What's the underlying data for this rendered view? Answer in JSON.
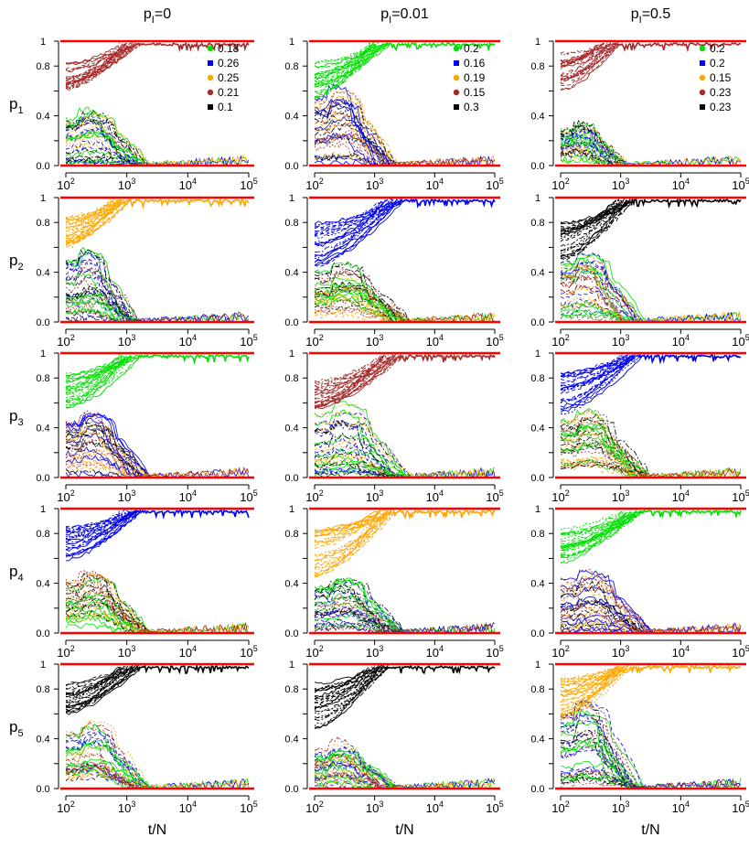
{
  "figure": {
    "column_titles": [
      {
        "base": "p",
        "sub": "I",
        "rest": "=0"
      },
      {
        "base": "p",
        "sub": "I",
        "rest": "=0.01"
      },
      {
        "base": "p",
        "sub": "I",
        "rest": "=0.5"
      }
    ],
    "row_labels": [
      {
        "base": "p",
        "sub": "1"
      },
      {
        "base": "p",
        "sub": "2"
      },
      {
        "base": "p",
        "sub": "3"
      },
      {
        "base": "p",
        "sub": "4"
      },
      {
        "base": "p",
        "sub": "5"
      }
    ],
    "xlabel": "t/N"
  },
  "chart_data": {
    "type": "line",
    "layout": "grid 5 rows x 3 columns",
    "x_scale": "log",
    "xlim": [
      100,
      100000
    ],
    "ylim": [
      0,
      1
    ],
    "x_ticks": [
      {
        "base": "10",
        "exp": "2"
      },
      {
        "base": "10",
        "exp": "3"
      },
      {
        "base": "10",
        "exp": "4"
      },
      {
        "base": "10",
        "exp": "5"
      }
    ],
    "y_ticks": [
      "0.0",
      "0.4",
      "0.8"
    ],
    "y_tick_values": [
      0.0,
      0.4,
      0.8
    ],
    "y_extra_ticks": [
      {
        "label": "1",
        "value": 1.0
      },
      {
        "label": "",
        "value": 0.2
      },
      {
        "label": "",
        "value": 0.6
      }
    ],
    "color_map": {
      "green": "#00e000",
      "blue": "#0000ee",
      "orange": "#ffa500",
      "brown": "#a52a2a",
      "black": "#000000",
      "red": "#ff0000"
    },
    "legend_markers": [
      "circle",
      "square",
      "circle",
      "circle",
      "square"
    ],
    "series_colors": [
      "green",
      "blue",
      "orange",
      "brown",
      "black"
    ],
    "reference_lines": {
      "color": "red",
      "y": [
        0,
        1
      ]
    },
    "legends": [
      {
        "column": 0,
        "placement": "top-right of first row",
        "entries": [
          {
            "color": "green",
            "label": "0.18"
          },
          {
            "color": "blue",
            "label": "0.26"
          },
          {
            "color": "orange",
            "label": "0.25"
          },
          {
            "color": "brown",
            "label": "0.21"
          },
          {
            "color": "black",
            "label": "0.1"
          }
        ]
      },
      {
        "column": 1,
        "placement": "top-right of first row",
        "entries": [
          {
            "color": "green",
            "label": "0.2"
          },
          {
            "color": "blue",
            "label": "0.16"
          },
          {
            "color": "orange",
            "label": "0.19"
          },
          {
            "color": "brown",
            "label": "0.15"
          },
          {
            "color": "black",
            "label": "0.3"
          }
        ]
      },
      {
        "column": 2,
        "placement": "top-right of first row",
        "entries": [
          {
            "color": "green",
            "label": "0.2"
          },
          {
            "color": "blue",
            "label": "0.2"
          },
          {
            "color": "orange",
            "label": "0.15"
          },
          {
            "color": "brown",
            "label": "0.23"
          },
          {
            "color": "black",
            "label": "0.23"
          }
        ]
      }
    ],
    "panels": [
      {
        "row": 1,
        "column": 1,
        "winner_color": "brown",
        "winner_start_range": [
          0.6,
          0.82
        ],
        "loser_peak_approx": 0.4,
        "fixation_t": 1500
      },
      {
        "row": 1,
        "column": 2,
        "winner_color": "green",
        "winner_start_range": [
          0.55,
          0.85
        ],
        "loser_peak_approx": 0.58,
        "fixation_t": 1500
      },
      {
        "row": 1,
        "column": 3,
        "winner_color": "brown",
        "winner_start_range": [
          0.6,
          0.9
        ],
        "loser_peak_approx": 0.3,
        "fixation_t": 800
      },
      {
        "row": 2,
        "column": 1,
        "winner_color": "orange",
        "winner_start_range": [
          0.6,
          0.85
        ],
        "loser_peak_approx": 0.55,
        "fixation_t": 1000
      },
      {
        "row": 2,
        "column": 2,
        "winner_color": "blue",
        "winner_start_range": [
          0.45,
          0.8
        ],
        "loser_peak_approx": 0.45,
        "fixation_t": 2500
      },
      {
        "row": 2,
        "column": 3,
        "winner_color": "black",
        "winner_start_range": [
          0.5,
          0.8
        ],
        "loser_peak_approx": 0.5,
        "fixation_t": 1500
      },
      {
        "row": 3,
        "column": 1,
        "winner_color": "green",
        "winner_start_range": [
          0.55,
          0.85
        ],
        "loser_peak_approx": 0.55,
        "fixation_t": 1500
      },
      {
        "row": 3,
        "column": 2,
        "winner_color": "brown",
        "winner_start_range": [
          0.55,
          0.8
        ],
        "loser_peak_approx": 0.55,
        "fixation_t": 2500
      },
      {
        "row": 3,
        "column": 3,
        "winner_color": "blue",
        "winner_start_range": [
          0.5,
          0.85
        ],
        "loser_peak_approx": 0.5,
        "fixation_t": 2000
      },
      {
        "row": 4,
        "column": 1,
        "winner_color": "blue",
        "winner_start_range": [
          0.55,
          0.85
        ],
        "loser_peak_approx": 0.45,
        "fixation_t": 1500
      },
      {
        "row": 4,
        "column": 2,
        "winner_color": "orange",
        "winner_start_range": [
          0.45,
          0.85
        ],
        "loser_peak_approx": 0.4,
        "fixation_t": 2000
      },
      {
        "row": 4,
        "column": 3,
        "winner_color": "green",
        "winner_start_range": [
          0.55,
          0.85
        ],
        "loser_peak_approx": 0.45,
        "fixation_t": 2000
      },
      {
        "row": 5,
        "column": 1,
        "winner_color": "black",
        "winner_start_range": [
          0.6,
          0.85
        ],
        "loser_peak_approx": 0.5,
        "fixation_t": 1500
      },
      {
        "row": 5,
        "column": 2,
        "winner_color": "black",
        "winner_start_range": [
          0.45,
          0.85
        ],
        "loser_peak_approx": 0.35,
        "fixation_t": 1500
      },
      {
        "row": 5,
        "column": 3,
        "winner_color": "orange",
        "winner_start_range": [
          0.55,
          0.9
        ],
        "loser_peak_approx": 0.65,
        "fixation_t": 1500
      }
    ]
  }
}
